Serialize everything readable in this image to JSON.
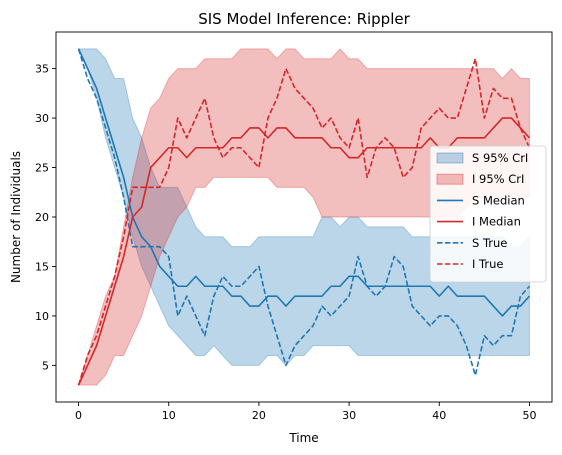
{
  "chart_data": {
    "type": "line",
    "title": "SIS Model Inference: Rippler",
    "xlabel": "Time",
    "ylabel": "Number of Individuals",
    "xlim": [
      -2.5,
      52.5
    ],
    "ylim": [
      1.3,
      38.7
    ],
    "xticks": [
      0,
      10,
      20,
      30,
      40,
      50
    ],
    "yticks": [
      5,
      10,
      15,
      20,
      25,
      30,
      35
    ],
    "x": [
      0,
      1,
      2,
      3,
      4,
      5,
      6,
      7,
      8,
      9,
      10,
      11,
      12,
      13,
      14,
      15,
      16,
      17,
      18,
      19,
      20,
      21,
      22,
      23,
      24,
      25,
      26,
      27,
      28,
      29,
      30,
      31,
      32,
      33,
      34,
      35,
      36,
      37,
      38,
      39,
      40,
      41,
      42,
      43,
      44,
      45,
      46,
      47,
      48,
      49,
      50
    ],
    "bands": [
      {
        "name": "S 95% CrI",
        "color": "#1f77b4",
        "lower": [
          37,
          35,
          32,
          28,
          25,
          22,
          18,
          15,
          13,
          11,
          9,
          8,
          7,
          6,
          6,
          7,
          6,
          5,
          5,
          5,
          5,
          6,
          6,
          5,
          6,
          6,
          7,
          7,
          7,
          7,
          7,
          6,
          6,
          6,
          6,
          6,
          6,
          6,
          6,
          6,
          6,
          6,
          6,
          6,
          6,
          6,
          6,
          6,
          6,
          6,
          6
        ],
        "upper": [
          37,
          37,
          37,
          36,
          34,
          34,
          30,
          28,
          25,
          23,
          23,
          23,
          21,
          19,
          18,
          18,
          18,
          17,
          17,
          17,
          18,
          18,
          18,
          18,
          18,
          18,
          18,
          20,
          20,
          19,
          20,
          20,
          19,
          19,
          19,
          19,
          19,
          18,
          18,
          18,
          18,
          18,
          18,
          18,
          18,
          18,
          18,
          18,
          17,
          17,
          18
        ]
      },
      {
        "name": "I 95% CrI",
        "color": "#d62728",
        "lower": [
          3,
          3,
          3,
          4,
          6,
          6,
          8,
          10,
          13,
          16,
          18,
          20,
          21,
          23,
          23,
          24,
          24,
          24,
          24,
          24,
          24,
          24,
          23,
          23,
          23,
          23,
          22,
          20,
          20,
          20,
          20,
          20,
          20,
          20,
          20,
          20,
          20,
          20,
          20,
          20,
          20,
          20,
          20,
          21,
          22,
          22,
          22,
          22,
          22,
          22,
          22
        ],
        "upper": [
          3,
          6,
          9,
          12,
          14,
          19,
          24,
          28,
          31,
          32,
          34,
          35,
          35,
          35,
          36,
          36,
          36,
          36,
          37,
          37,
          37,
          37,
          36,
          37,
          37,
          36,
          36,
          36,
          36,
          37,
          36,
          36,
          35,
          35,
          35,
          35,
          35,
          35,
          35,
          35,
          35,
          35,
          35,
          35,
          35,
          35,
          35,
          34,
          35,
          34,
          34
        ]
      }
    ],
    "series": [
      {
        "name": "S Median",
        "color": "#1f77b4",
        "style": "solid",
        "values": [
          37,
          35,
          33,
          30,
          27,
          24,
          20,
          18,
          17,
          15,
          14,
          13,
          13,
          14,
          13,
          13,
          13,
          12,
          12,
          11,
          11,
          12,
          12,
          11,
          12,
          12,
          12,
          12,
          13,
          13,
          14,
          14,
          13,
          13,
          13,
          13,
          13,
          13,
          13,
          13,
          12,
          13,
          12,
          12,
          12,
          12,
          11,
          10,
          11,
          11,
          12
        ]
      },
      {
        "name": "I Median",
        "color": "#d62728",
        "style": "solid",
        "values": [
          3,
          5,
          7,
          10,
          13,
          16,
          20,
          21,
          25,
          26,
          27,
          27,
          26,
          27,
          27,
          27,
          27,
          28,
          28,
          29,
          29,
          28,
          29,
          29,
          28,
          28,
          28,
          28,
          27,
          27,
          26,
          26,
          27,
          27,
          27,
          27,
          27,
          27,
          27,
          28,
          27,
          27,
          28,
          28,
          28,
          28,
          29,
          30,
          30,
          29,
          28
        ]
      },
      {
        "name": "S True",
        "color": "#1f77b4",
        "style": "dashed",
        "values": [
          37,
          34,
          32,
          29,
          26,
          22,
          17,
          17,
          17,
          17,
          16,
          10,
          12,
          10,
          8,
          12,
          14,
          13,
          13,
          14,
          15,
          11,
          8,
          5,
          7,
          8,
          9,
          11,
          10,
          11,
          12,
          16,
          13,
          12,
          13,
          16,
          15,
          11,
          10,
          9,
          10,
          10,
          9,
          7,
          4,
          8,
          7,
          8,
          8,
          12,
          13
        ]
      },
      {
        "name": "I True",
        "color": "#d62728",
        "style": "dashed",
        "values": [
          3,
          6,
          8,
          11,
          14,
          18,
          23,
          23,
          23,
          23,
          25,
          30,
          28,
          30,
          32,
          28,
          26,
          27,
          27,
          26,
          25,
          30,
          32,
          35,
          33,
          32,
          31,
          29,
          30,
          28,
          27,
          30,
          24,
          27,
          28,
          27,
          24,
          25,
          29,
          30,
          31,
          30,
          30,
          33,
          36,
          30,
          33,
          32,
          32,
          29,
          27
        ]
      }
    ],
    "legend": {
      "position": "center-right",
      "order": [
        "S 95% CrI",
        "I 95% CrI",
        "S Median",
        "I Median",
        "S True",
        "I True"
      ]
    },
    "grid": false
  }
}
